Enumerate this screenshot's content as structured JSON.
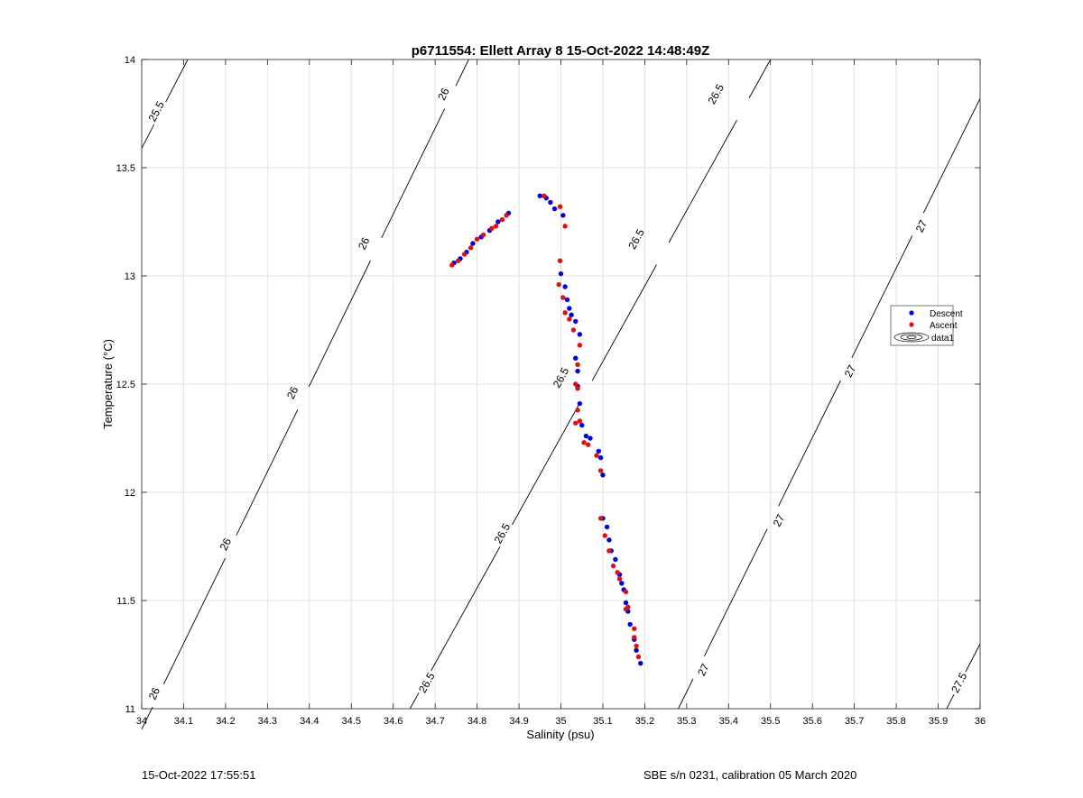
{
  "chart_data": {
    "type": "scatter",
    "title": "p6711554: Ellett Array 8 15-Oct-2022 14:48:49Z",
    "xlabel": "Salinity (psu)",
    "ylabel": "Temperature (°C)",
    "xlim": [
      34,
      36
    ],
    "ylim": [
      11,
      14
    ],
    "grid": true,
    "legend_placement": "right",
    "xticks": [
      "34",
      "34.1",
      "34.2",
      "34.3",
      "34.4",
      "34.5",
      "34.6",
      "34.7",
      "34.8",
      "34.9",
      "35",
      "35.1",
      "35.2",
      "35.3",
      "35.4",
      "35.5",
      "35.6",
      "35.7",
      "35.8",
      "35.9",
      "36"
    ],
    "yticks": [
      "11",
      "11.5",
      "12",
      "12.5",
      "13",
      "13.5",
      "14"
    ],
    "series": [
      {
        "name": "Descent",
        "color": "#0000dd",
        "points": [
          [
            34.745,
            13.06
          ],
          [
            34.76,
            13.08
          ],
          [
            34.775,
            13.11
          ],
          [
            34.79,
            13.15
          ],
          [
            34.81,
            13.18
          ],
          [
            34.83,
            13.21
          ],
          [
            34.85,
            13.25
          ],
          [
            34.875,
            13.29
          ],
          [
            34.95,
            13.37
          ],
          [
            34.965,
            13.36
          ],
          [
            34.975,
            13.34
          ],
          [
            34.985,
            13.31
          ],
          [
            35.005,
            13.28
          ],
          [
            35.0,
            13.01
          ],
          [
            35.01,
            12.95
          ],
          [
            35.015,
            12.89
          ],
          [
            35.02,
            12.85
          ],
          [
            35.025,
            12.82
          ],
          [
            35.035,
            12.79
          ],
          [
            35.045,
            12.73
          ],
          [
            35.035,
            12.62
          ],
          [
            35.04,
            12.56
          ],
          [
            35.04,
            12.49
          ],
          [
            35.045,
            12.41
          ],
          [
            35.05,
            12.31
          ],
          [
            35.06,
            12.26
          ],
          [
            35.07,
            12.25
          ],
          [
            35.09,
            12.19
          ],
          [
            35.095,
            12.16
          ],
          [
            35.1,
            12.08
          ],
          [
            35.1,
            11.88
          ],
          [
            35.11,
            11.84
          ],
          [
            35.115,
            11.78
          ],
          [
            35.12,
            11.73
          ],
          [
            35.13,
            11.69
          ],
          [
            35.14,
            11.62
          ],
          [
            35.145,
            11.58
          ],
          [
            35.15,
            11.55
          ],
          [
            35.155,
            11.49
          ],
          [
            35.16,
            11.45
          ],
          [
            35.165,
            11.39
          ],
          [
            35.175,
            11.32
          ],
          [
            35.18,
            11.27
          ],
          [
            35.19,
            11.21
          ]
        ]
      },
      {
        "name": "Ascent",
        "color": "#dd1111",
        "points": [
          [
            34.74,
            13.05
          ],
          [
            34.755,
            13.07
          ],
          [
            34.77,
            13.1
          ],
          [
            34.785,
            13.13
          ],
          [
            34.8,
            13.17
          ],
          [
            34.815,
            13.19
          ],
          [
            34.835,
            13.22
          ],
          [
            34.845,
            13.23
          ],
          [
            34.86,
            13.26
          ],
          [
            34.87,
            13.28
          ],
          [
            34.96,
            13.37
          ],
          [
            34.998,
            13.32
          ],
          [
            35.01,
            13.23
          ],
          [
            34.998,
            13.07
          ],
          [
            34.995,
            12.96
          ],
          [
            35.005,
            12.9
          ],
          [
            35.01,
            12.83
          ],
          [
            35.02,
            12.8
          ],
          [
            35.03,
            12.75
          ],
          [
            35.045,
            12.68
          ],
          [
            35.04,
            12.59
          ],
          [
            35.035,
            12.5
          ],
          [
            35.04,
            12.48
          ],
          [
            35.04,
            12.38
          ],
          [
            35.045,
            12.33
          ],
          [
            35.035,
            12.32
          ],
          [
            35.055,
            12.23
          ],
          [
            35.065,
            12.22
          ],
          [
            35.085,
            12.17
          ],
          [
            35.095,
            12.1
          ],
          [
            35.095,
            11.88
          ],
          [
            35.105,
            11.8
          ],
          [
            35.115,
            11.73
          ],
          [
            35.125,
            11.66
          ],
          [
            35.135,
            11.63
          ],
          [
            35.14,
            11.6
          ],
          [
            35.155,
            11.54
          ],
          [
            35.155,
            11.46
          ],
          [
            35.16,
            11.47
          ],
          [
            35.175,
            11.37
          ],
          [
            35.175,
            11.33
          ],
          [
            35.18,
            11.29
          ],
          [
            35.185,
            11.24
          ]
        ]
      }
    ],
    "density_contours": [
      {
        "level": "25.5",
        "line": [
          [
            34.0,
            13.59
          ],
          [
            34.11,
            14.0
          ]
        ],
        "labels": [
          [
            34.035,
            13.76
          ]
        ]
      },
      {
        "level": "26",
        "line": [
          [
            34.0,
            10.905
          ],
          [
            34.78,
            14.0
          ]
        ],
        "labels": [
          [
            34.03,
            11.07
          ],
          [
            34.2,
            11.76
          ],
          [
            34.36,
            12.46
          ],
          [
            34.53,
            13.15
          ],
          [
            34.72,
            13.84
          ]
        ]
      },
      {
        "level": "26.5",
        "line": [
          [
            34.64,
            11.0
          ],
          [
            35.5,
            14.0
          ]
        ],
        "labels": [
          [
            34.68,
            11.12
          ],
          [
            34.86,
            11.81
          ],
          [
            35.0,
            12.53
          ],
          [
            35.18,
            13.17
          ],
          [
            35.37,
            13.84
          ]
        ]
      },
      {
        "level": "27",
        "line": [
          [
            35.28,
            11.0
          ],
          [
            36.0,
            13.82
          ]
        ],
        "labels": [
          [
            35.34,
            11.18
          ],
          [
            35.52,
            11.87
          ],
          [
            35.69,
            12.56
          ],
          [
            35.86,
            13.23
          ]
        ]
      },
      {
        "level": "27.5",
        "line": [
          [
            35.92,
            11.0
          ],
          [
            36.0,
            11.3
          ]
        ],
        "labels": [
          [
            35.95,
            11.12
          ]
        ]
      }
    ]
  },
  "legend": {
    "items": [
      {
        "label": "Descent",
        "color": "#0000dd"
      },
      {
        "label": "Ascent",
        "color": "#dd1111"
      },
      {
        "label": "data1",
        "icon": "contour-icon"
      }
    ]
  },
  "footer": {
    "left": "15-Oct-2022 17:55:51",
    "right": "SBE s/n 0231, calibration 05 March 2020"
  }
}
